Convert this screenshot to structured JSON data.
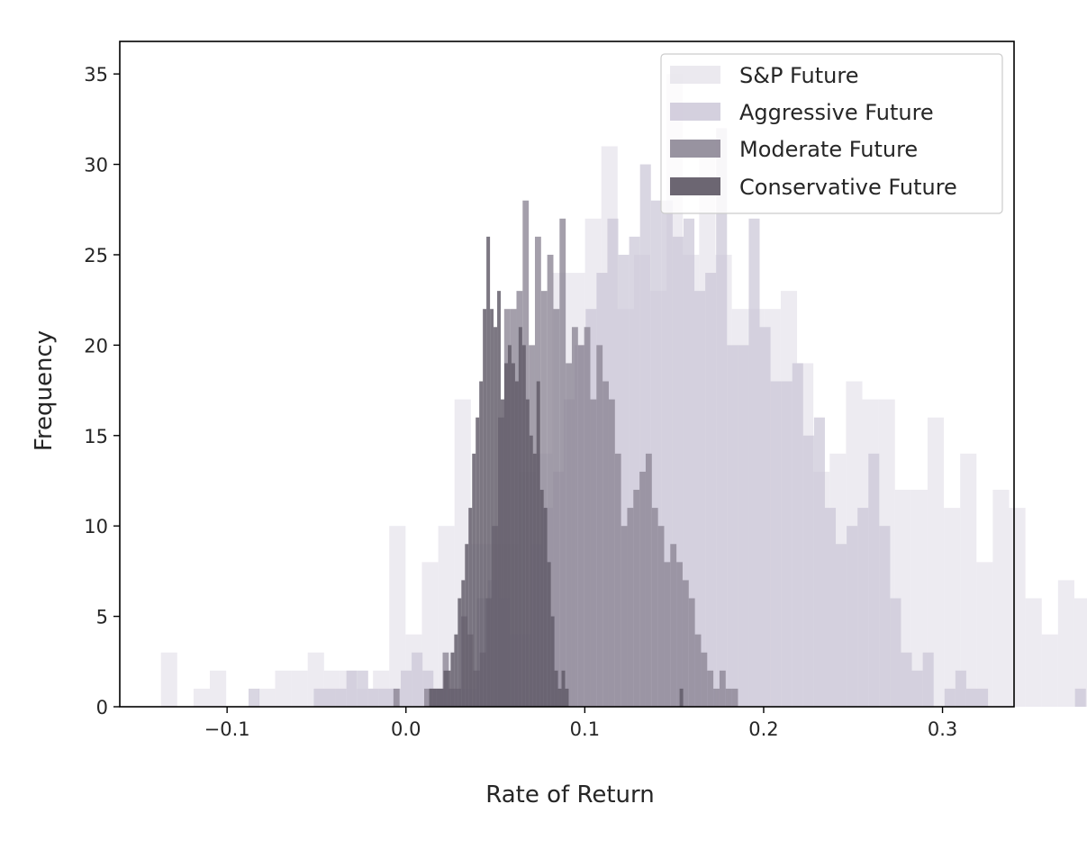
{
  "chart_data": {
    "type": "histogram",
    "title": "",
    "xlabel": "Rate of Return",
    "ylabel": "Frequency",
    "xlim": [
      -0.16,
      0.34
    ],
    "ylim": [
      0,
      36.8
    ],
    "xticks": [
      -0.1,
      0.0,
      0.1,
      0.2,
      0.3
    ],
    "xtick_labels": [
      "−0.1",
      "0.0",
      "0.1",
      "0.2",
      "0.3"
    ],
    "yticks": [
      0,
      5,
      10,
      15,
      20,
      25,
      30,
      35
    ],
    "ytick_labels": [
      "0",
      "5",
      "10",
      "15",
      "20",
      "25",
      "30",
      "35"
    ],
    "grid": false,
    "legend_position": "top-right",
    "series": [
      {
        "name": "S&P Future",
        "color": "#e4e1ea",
        "opacity": 0.65,
        "bin_start": -0.137,
        "bin_width": 0.00912,
        "counts": [
          3,
          0,
          1,
          2,
          0,
          0,
          1,
          2,
          2,
          3,
          2,
          2,
          1,
          2,
          10,
          4,
          8,
          10,
          17,
          9,
          9,
          9,
          13,
          14,
          24,
          24,
          27,
          31,
          22,
          25,
          23,
          35,
          25,
          31,
          25,
          22,
          22,
          22,
          23,
          19,
          13,
          14,
          18,
          17,
          17,
          12,
          12,
          16,
          11,
          14,
          8,
          12,
          11,
          6,
          4,
          7,
          6,
          3,
          3,
          5,
          2,
          2,
          3,
          1,
          1
        ]
      },
      {
        "name": "Aggressive Future",
        "color": "#c9c4d6",
        "opacity": 0.7,
        "bin_start": -0.088,
        "bin_width": 0.00608,
        "counts": [
          1,
          0,
          0,
          0,
          0,
          0,
          1,
          1,
          1,
          2,
          2,
          1,
          1,
          1,
          2,
          3,
          2,
          1,
          1,
          1,
          1,
          6,
          7,
          6,
          4,
          4,
          9,
          11,
          13,
          17,
          20,
          22,
          24,
          27,
          25,
          26,
          30,
          28,
          28,
          26,
          27,
          23,
          24,
          32,
          20,
          20,
          27,
          21,
          18,
          18,
          19,
          15,
          16,
          11,
          9,
          10,
          11,
          14,
          10,
          6,
          3,
          2,
          3,
          0,
          1,
          2,
          1,
          1,
          0,
          0,
          0,
          0,
          0,
          0,
          0,
          0,
          1
        ]
      },
      {
        "name": "Moderate Future",
        "color": "#8a8493",
        "opacity": 0.78,
        "bin_start": -0.007,
        "bin_width": 0.00344,
        "counts": [
          1,
          0,
          0,
          0,
          0,
          1,
          1,
          1,
          3,
          1,
          1,
          5,
          4,
          2,
          3,
          6,
          10,
          16,
          22,
          22,
          23,
          28,
          20,
          26,
          23,
          25,
          22,
          27,
          19,
          21,
          20,
          21,
          17,
          20,
          18,
          17,
          14,
          10,
          11,
          12,
          13,
          14,
          11,
          10,
          8,
          9,
          8,
          7,
          6,
          4,
          3,
          2,
          1,
          2,
          1,
          1,
          0,
          0,
          0,
          0,
          0,
          0,
          0,
          0,
          0,
          0,
          0,
          0,
          0,
          0,
          0
        ]
      },
      {
        "name": "Conservative Future",
        "color": "#5f5966",
        "opacity": 0.82,
        "bin_start": 0.013,
        "bin_width": 0.002,
        "counts": [
          1,
          1,
          1,
          1,
          2,
          2,
          3,
          4,
          6,
          7,
          9,
          11,
          14,
          16,
          18,
          22,
          26,
          22,
          21,
          23,
          17,
          19,
          20,
          19,
          18,
          21,
          20,
          17,
          15,
          14,
          18,
          12,
          11,
          8,
          5,
          2,
          1,
          2,
          1,
          0,
          0,
          0,
          0,
          0,
          0,
          0,
          0,
          0,
          0,
          0,
          0,
          0,
          0,
          0,
          0,
          0,
          0,
          0,
          0,
          0,
          0,
          0,
          0,
          0,
          0,
          0,
          0,
          0,
          0,
          0,
          1
        ]
      }
    ]
  }
}
